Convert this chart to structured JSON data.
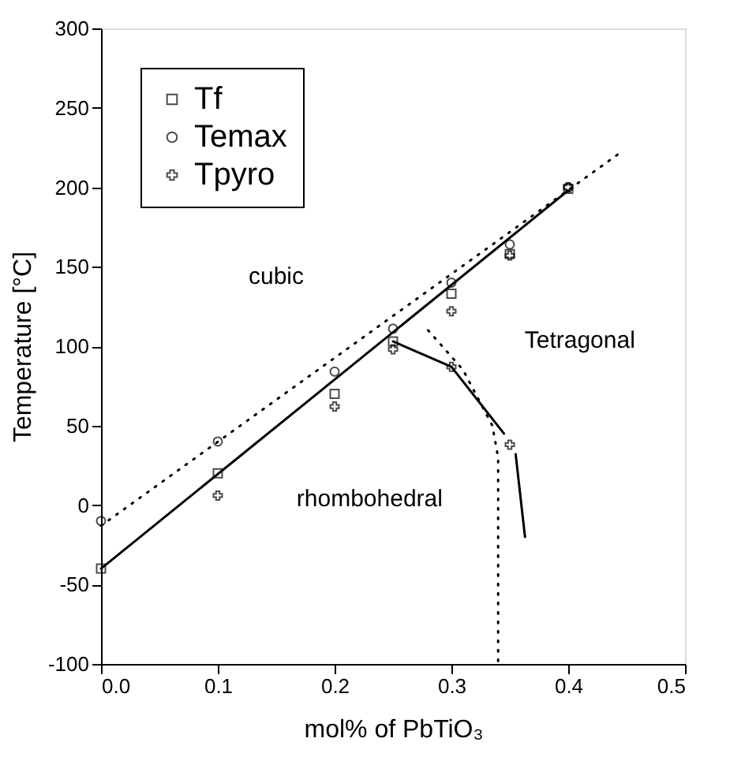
{
  "chart_data": {
    "type": "scatter",
    "xlabel": "mol% of PbTiO₃",
    "ylabel": "Temperature [°C]",
    "x": [
      0,
      0.1,
      0.2,
      0.25,
      0.3,
      0.35,
      0.4
    ],
    "series": [
      {
        "name": "Tf",
        "color": "#000000",
        "marker": "square",
        "values": [
          -40,
          20,
          70,
          103,
          133,
          158,
          199
        ]
      },
      {
        "name": "Temax",
        "color": "#000000",
        "marker": "circle",
        "values": [
          -10,
          40,
          84,
          111,
          140,
          164,
          200
        ]
      },
      {
        "name": "Tpyro",
        "color": "#000000",
        "marker": "cross",
        "x": [
          0.1,
          0.2,
          0.25,
          0.3,
          0.3,
          0.35,
          0.35,
          0.4
        ],
        "values": [
          6,
          62,
          98,
          122,
          87,
          157,
          38,
          200
        ]
      },
      {
        "type": "line",
        "color": "#000000",
        "line_style": "solid",
        "x": [
          0,
          0.4
        ],
        "values": [
          -40,
          198
        ]
      },
      {
        "type": "line",
        "color": "#000000",
        "line_style": "solid",
        "x": [
          0.25,
          0.3,
          0.345
        ],
        "values": [
          103,
          87,
          45
        ]
      },
      {
        "type": "line",
        "color": "#000000",
        "line_style": "solid",
        "x": [
          0.355,
          0.363
        ],
        "values": [
          32,
          -20
        ]
      },
      {
        "type": "line",
        "color": "#000000",
        "line_style": "dotted",
        "x": [
          0,
          0.445
        ],
        "values": [
          -13,
          222
        ]
      },
      {
        "type": "line",
        "color": "#000000",
        "line_style": "dotted",
        "x": [
          0.28,
          0.31,
          0.335,
          0.34,
          0.34
        ],
        "values": [
          110,
          85,
          50,
          30,
          -100
        ]
      }
    ],
    "annotations": [
      "cubic",
      "Tetragonal",
      "rhombohedral"
    ],
    "xlim": [
      0,
      0.5
    ],
    "xticks": [
      {
        "value": 0,
        "label": "0.0"
      },
      0.1,
      0.2,
      0.3,
      0.4,
      0.5
    ],
    "ylim": [
      -100,
      300
    ],
    "yticks": [
      -100,
      -50,
      0,
      50,
      100,
      150,
      200,
      250,
      300
    ],
    "grid": false,
    "legend": "top left"
  }
}
